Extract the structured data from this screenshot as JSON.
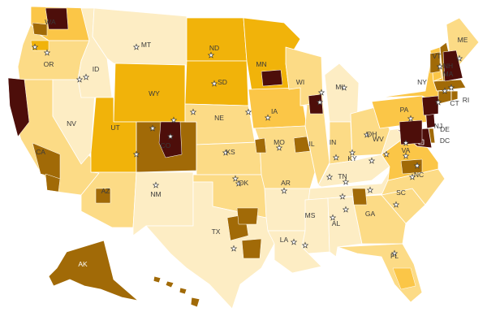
{
  "palette": {
    "c1": "#fdedc4",
    "c2": "#fcdb86",
    "c3": "#fbc647",
    "c4": "#f1b30a",
    "c5": "#a16a07",
    "c6": "#4d0e0a",
    "border": "#ffffff",
    "label": "#3a3a3a",
    "capital_star": "#ffffff"
  },
  "states": [
    {
      "abbr": "WA",
      "level": "c3"
    },
    {
      "abbr": "OR",
      "level": "c2"
    },
    {
      "abbr": "CA",
      "level": "c2"
    },
    {
      "abbr": "NV",
      "level": "c1"
    },
    {
      "abbr": "ID",
      "level": "c1"
    },
    {
      "abbr": "MT",
      "level": "c1"
    },
    {
      "abbr": "WY",
      "level": "c4"
    },
    {
      "abbr": "UT",
      "level": "c4"
    },
    {
      "abbr": "AZ",
      "level": "c2"
    },
    {
      "abbr": "CO",
      "level": "c5"
    },
    {
      "abbr": "NM",
      "level": "c1"
    },
    {
      "abbr": "ND",
      "level": "c4"
    },
    {
      "abbr": "SD",
      "level": "c4"
    },
    {
      "abbr": "NE",
      "level": "c2"
    },
    {
      "abbr": "KS",
      "level": "c2"
    },
    {
      "abbr": "OK",
      "level": "c2"
    },
    {
      "abbr": "TX",
      "level": "c1"
    },
    {
      "abbr": "MN",
      "level": "c4"
    },
    {
      "abbr": "IA",
      "level": "c3"
    },
    {
      "abbr": "MO",
      "level": "c2"
    },
    {
      "abbr": "AR",
      "level": "c1"
    },
    {
      "abbr": "LA",
      "level": "c1"
    },
    {
      "abbr": "WI",
      "level": "c2"
    },
    {
      "abbr": "IL",
      "level": "c2"
    },
    {
      "abbr": "MI",
      "level": "c1"
    },
    {
      "abbr": "IN",
      "level": "c2"
    },
    {
      "abbr": "OH",
      "level": "c2"
    },
    {
      "abbr": "KY",
      "level": "c1"
    },
    {
      "abbr": "TN",
      "level": "c1"
    },
    {
      "abbr": "MS",
      "level": "c1"
    },
    {
      "abbr": "AL",
      "level": "c1"
    },
    {
      "abbr": "GA",
      "level": "c2"
    },
    {
      "abbr": "FL",
      "level": "c2"
    },
    {
      "abbr": "SC",
      "level": "c2"
    },
    {
      "abbr": "NC",
      "level": "c2"
    },
    {
      "abbr": "VA",
      "level": "c3"
    },
    {
      "abbr": "WV",
      "level": "c1"
    },
    {
      "abbr": "PA",
      "level": "c3"
    },
    {
      "abbr": "NY",
      "level": "c3"
    },
    {
      "abbr": "VT",
      "level": "c3"
    },
    {
      "abbr": "NH",
      "level": "c5"
    },
    {
      "abbr": "ME",
      "level": "c2"
    },
    {
      "abbr": "MA",
      "level": "c5"
    },
    {
      "abbr": "CT",
      "level": "c5"
    },
    {
      "abbr": "RI",
      "level": "c5"
    },
    {
      "abbr": "NJ",
      "level": "c6"
    },
    {
      "abbr": "DE",
      "level": "c5"
    },
    {
      "abbr": "MD",
      "level": "c6"
    },
    {
      "abbr": "DC",
      "level": "c6"
    },
    {
      "abbr": "AK",
      "level": "c5"
    },
    {
      "abbr": "HI",
      "level": "c5"
    }
  ],
  "labels": [
    "WA",
    "OR",
    "CA",
    "NV",
    "ID",
    "MT",
    "WY",
    "UT",
    "AZ",
    "CO",
    "NM",
    "ND",
    "SD",
    "NE",
    "KS",
    "OK",
    "TX",
    "MN",
    "IA",
    "MO",
    "AR",
    "LA",
    "WI",
    "IL",
    "MI",
    "IN",
    "OH",
    "KY",
    "TN",
    "MS",
    "AL",
    "GA",
    "FL",
    "SC",
    "NC",
    "VA",
    "WV",
    "PA",
    "NY",
    "VT",
    "NH",
    "ME",
    "MA",
    "CT",
    "RI",
    "NJ",
    "DE",
    "DC",
    "AK"
  ],
  "districts": [
    {
      "state": "WA",
      "area": "Seattle",
      "level": "c6"
    },
    {
      "state": "WA",
      "area": "Olympia",
      "level": "c5"
    },
    {
      "state": "OR",
      "area": "Portland",
      "level": "c4"
    },
    {
      "state": "CA",
      "area": "Bay Area",
      "level": "c6"
    },
    {
      "state": "CA",
      "area": "Los Angeles",
      "level": "c5"
    },
    {
      "state": "CA",
      "area": "San Diego",
      "level": "c5"
    },
    {
      "state": "CO",
      "area": "Denver-Boulder",
      "level": "c6"
    },
    {
      "state": "AZ",
      "area": "Tucson",
      "level": "c5"
    },
    {
      "state": "TX",
      "area": "Austin",
      "level": "c5"
    },
    {
      "state": "TX",
      "area": "Dallas",
      "level": "c5"
    },
    {
      "state": "TX",
      "area": "Houston",
      "level": "c5"
    },
    {
      "state": "MN",
      "area": "Minneapolis",
      "level": "c6"
    },
    {
      "state": "IL",
      "area": "Chicago",
      "level": "c6"
    },
    {
      "state": "MO",
      "area": "St. Louis",
      "level": "c5"
    },
    {
      "state": "MO",
      "area": "Kansas City",
      "level": "c5"
    },
    {
      "state": "GA",
      "area": "Atlanta",
      "level": "c5"
    },
    {
      "state": "NC",
      "area": "Triangle",
      "level": "c5"
    },
    {
      "state": "FL",
      "area": "South Florida",
      "level": "c3"
    },
    {
      "state": "NY",
      "area": "New York City",
      "level": "c6"
    },
    {
      "state": "MD",
      "area": "Washington Metro",
      "level": "c6"
    },
    {
      "state": "MA",
      "area": "Boston",
      "level": "c6"
    },
    {
      "state": "VT",
      "area": "Burlington",
      "level": "c5"
    }
  ]
}
